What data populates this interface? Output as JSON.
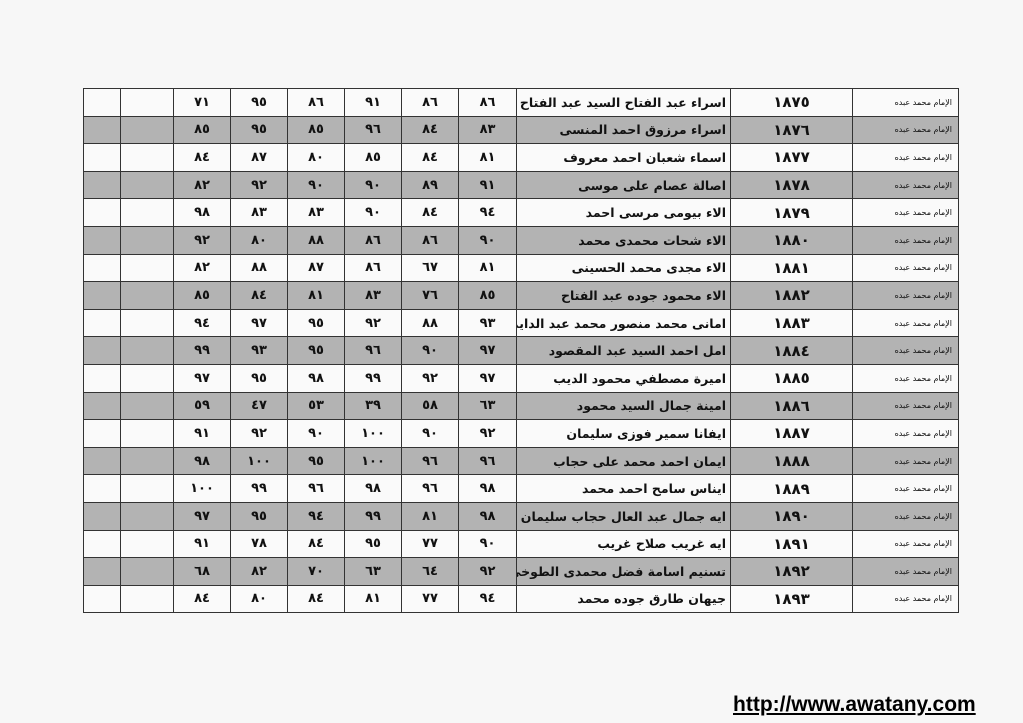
{
  "table": {
    "rows": [
      {
        "school": "الإمام محمد عبده",
        "id": "١٨٧٥",
        "name": "اسراء عبد الفتاح السيد عبد الفتاح",
        "scores": [
          "٨٦",
          "٨٦",
          "٩١",
          "٨٦",
          "٩٥",
          "٧١"
        ]
      },
      {
        "school": "الإمام محمد عبده",
        "id": "١٨٧٦",
        "name": "اسراء مرزوق احمد المنسى",
        "scores": [
          "٨٣",
          "٨٤",
          "٩٦",
          "٨٥",
          "٩٥",
          "٨٥"
        ]
      },
      {
        "school": "الإمام محمد عبده",
        "id": "١٨٧٧",
        "name": "اسماء شعبان احمد معروف",
        "scores": [
          "٨١",
          "٨٤",
          "٨٥",
          "٨٠",
          "٨٧",
          "٨٤"
        ]
      },
      {
        "school": "الإمام محمد عبده",
        "id": "١٨٧٨",
        "name": "اصالة عصام على موسى",
        "scores": [
          "٩١",
          "٨٩",
          "٩٠",
          "٩٠",
          "٩٢",
          "٨٢"
        ]
      },
      {
        "school": "الإمام محمد عبده",
        "id": "١٨٧٩",
        "name": "الاء بيومى  مرسى احمد",
        "scores": [
          "٩٤",
          "٨٤",
          "٩٠",
          "٨٣",
          "٨٣",
          "٩٨"
        ]
      },
      {
        "school": "الإمام محمد عبده",
        "id": "١٨٨٠",
        "name": "الاء شحات محمدى محمد",
        "scores": [
          "٩٠",
          "٨٦",
          "٨٦",
          "٨٨",
          "٨٠",
          "٩٢"
        ]
      },
      {
        "school": "الإمام محمد عبده",
        "id": "١٨٨١",
        "name": "الاء مجدى محمد الحسينى",
        "scores": [
          "٨١",
          "٦٧",
          "٨٦",
          "٨٧",
          "٨٨",
          "٨٢"
        ]
      },
      {
        "school": "الإمام محمد عبده",
        "id": "١٨٨٢",
        "name": "الاء محمود جوده عبد الفتاح",
        "scores": [
          "٨٥",
          "٧٦",
          "٨٣",
          "٨١",
          "٨٤",
          "٨٥"
        ]
      },
      {
        "school": "الإمام محمد عبده",
        "id": "١٨٨٣",
        "name": "امانى محمد منصور محمد عبد الدايم",
        "scores": [
          "٩٣",
          "٨٨",
          "٩٢",
          "٩٥",
          "٩٧",
          "٩٤"
        ]
      },
      {
        "school": "الإمام محمد عبده",
        "id": "١٨٨٤",
        "name": "امل احمد السيد عبد المقصود",
        "scores": [
          "٩٧",
          "٩٠",
          "٩٦",
          "٩٥",
          "٩٣",
          "٩٩"
        ]
      },
      {
        "school": "الإمام محمد عبده",
        "id": "١٨٨٥",
        "name": "اميرة مصطفي محمود الديب",
        "scores": [
          "٩٧",
          "٩٢",
          "٩٩",
          "٩٨",
          "٩٥",
          "٩٧"
        ]
      },
      {
        "school": "الإمام محمد عبده",
        "id": "١٨٨٦",
        "name": "امينة جمال السيد محمود",
        "scores": [
          "٦٣",
          "٥٨",
          "٣٩",
          "٥٣",
          "٤٧",
          "٥٩"
        ]
      },
      {
        "school": "الإمام محمد عبده",
        "id": "١٨٨٧",
        "name": "ايفانا سمير فوزى سليمان",
        "scores": [
          "٩٢",
          "٩٠",
          "١٠٠",
          "٩٠",
          "٩٢",
          "٩١"
        ]
      },
      {
        "school": "الإمام محمد عبده",
        "id": "١٨٨٨",
        "name": "ايمان احمد محمد على حجاب",
        "scores": [
          "٩٦",
          "٩٦",
          "١٠٠",
          "٩٥",
          "١٠٠",
          "٩٨"
        ]
      },
      {
        "school": "الإمام محمد عبده",
        "id": "١٨٨٩",
        "name": "ايناس سامح احمد محمد",
        "scores": [
          "٩٨",
          "٩٦",
          "٩٨",
          "٩٦",
          "٩٩",
          "١٠٠"
        ]
      },
      {
        "school": "الإمام محمد عبده",
        "id": "١٨٩٠",
        "name": "ايه جمال عبد العال  حجاب سليمان",
        "scores": [
          "٩٨",
          "٨١",
          "٩٩",
          "٩٤",
          "٩٥",
          "٩٧"
        ]
      },
      {
        "school": "الإمام محمد عبده",
        "id": "١٨٩١",
        "name": "ايه غريب صلاح غريب",
        "scores": [
          "٩٠",
          "٧٧",
          "٩٥",
          "٨٤",
          "٧٨",
          "٩١"
        ]
      },
      {
        "school": "الإمام محمد عبده",
        "id": "١٨٩٢",
        "name": "تسنيم اسامة فضل محمدى الطوخى",
        "scores": [
          "٩٢",
          "٦٤",
          "٦٣",
          "٧٠",
          "٨٢",
          "٦٨"
        ]
      },
      {
        "school": "الإمام محمد عبده",
        "id": "١٨٩٣",
        "name": "جيهان طارق جوده محمد",
        "scores": [
          "٩٤",
          "٧٧",
          "٨١",
          "٨٤",
          "٨٠",
          "٨٤"
        ]
      }
    ],
    "row_colors": {
      "odd": "#fafafa",
      "even": "#b3b3b3"
    }
  },
  "footer": {
    "url": "http://www.awatany.com"
  }
}
